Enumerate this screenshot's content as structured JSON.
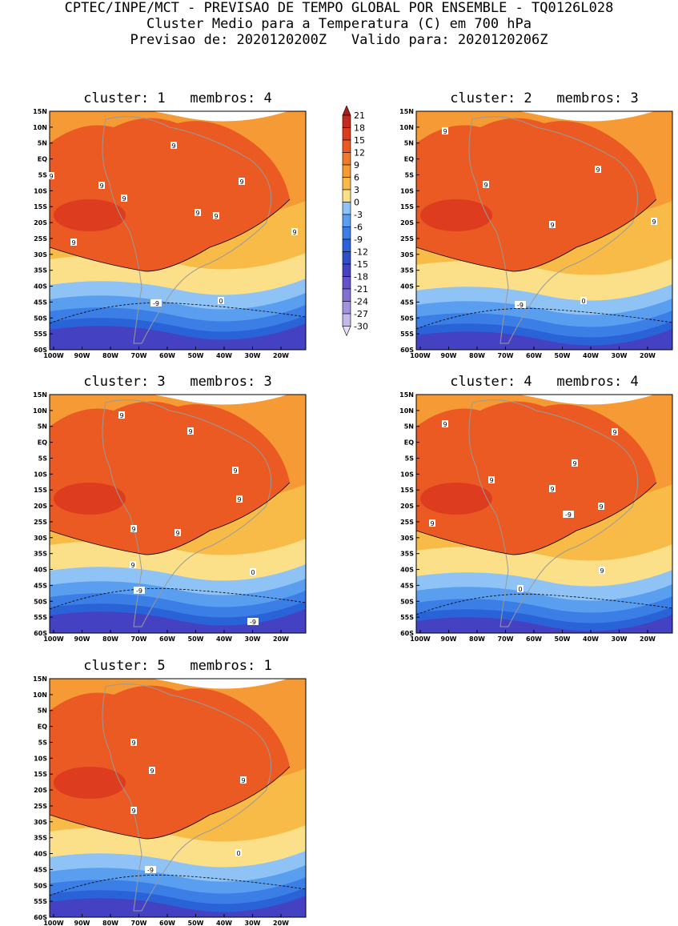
{
  "header": {
    "line1": "CPTEC/INPE/MCT - PREVISAO DE TEMPO GLOBAL POR ENSEMBLE - TQ0126L028",
    "line2": "Cluster Medio para a Temperatura (C) em 700 hPa",
    "line3": "Previsao de: 2020120200Z   Valido para: 2020120206Z"
  },
  "map_axes": {
    "lat_labels": [
      "15N",
      "10N",
      "5N",
      "EQ",
      "5S",
      "10S",
      "15S",
      "20S",
      "25S",
      "30S",
      "35S",
      "40S",
      "45S",
      "50S",
      "55S",
      "60S"
    ],
    "lon_labels": [
      "100W",
      "90W",
      "80W",
      "70W",
      "60W",
      "50W",
      "40W",
      "30W",
      "20W"
    ]
  },
  "panels": [
    {
      "title": "cluster: 1   membros: 4",
      "labels": [
        "9",
        "9",
        "9",
        "9",
        "9",
        "9",
        "9",
        "9",
        "9",
        "0",
        "-9"
      ]
    },
    {
      "title": "cluster: 2   membros: 3",
      "labels": [
        "9",
        "9",
        "9",
        "9",
        "9",
        "0",
        "-9"
      ]
    },
    {
      "title": "cluster: 3   membros: 3",
      "labels": [
        "9",
        "9",
        "9",
        "9",
        "9",
        "9",
        "9",
        "0",
        "-9",
        "-9"
      ]
    },
    {
      "title": "cluster: 4   membros: 4",
      "labels": [
        "9",
        "9",
        "9",
        "9",
        "9",
        "9",
        "9",
        "9",
        "0",
        "-9"
      ]
    },
    {
      "title": "cluster: 5   membros: 1",
      "labels": [
        "9",
        "9",
        "9",
        "9",
        "0",
        "-9"
      ]
    }
  ],
  "colorbar": {
    "ticks": [
      "21",
      "18",
      "15",
      "12",
      "9",
      "6",
      "3",
      "0",
      "-3",
      "-6",
      "-9",
      "-12",
      "-15",
      "-18",
      "-21",
      "-24",
      "-27",
      "-30"
    ],
    "colors": [
      "#a51e1e",
      "#c42a1e",
      "#dd3c1e",
      "#ea5a22",
      "#f07a2c",
      "#f59a34",
      "#f9bb48",
      "#fbe089",
      "#8fc3f5",
      "#5a9ef0",
      "#3a7ee6",
      "#2a62d8",
      "#2f4fc8",
      "#4442c2",
      "#6551c8",
      "#8470d2",
      "#a293de",
      "#c6b9ea",
      "#e6dff5"
    ]
  }
}
